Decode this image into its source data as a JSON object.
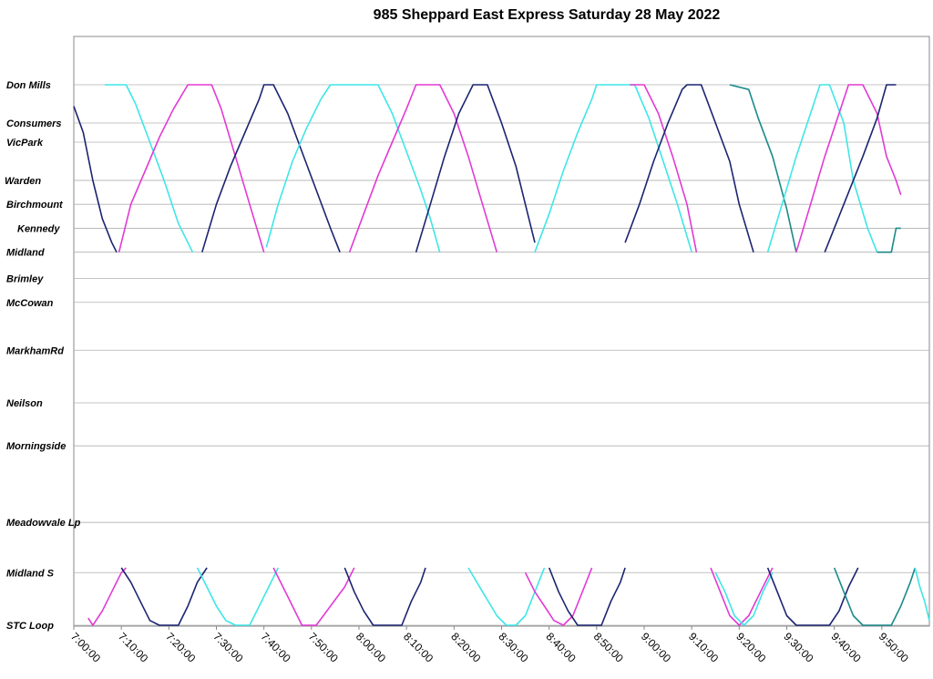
{
  "chart_data": {
    "type": "line",
    "title": "985 Sheppard East Express Saturday 28 May 2022",
    "xlabel": "",
    "ylabel": "",
    "grid": true,
    "x_ticks": [
      "7:00:00",
      "7:10:00",
      "7:20:00",
      "7:30:00",
      "7:40:00",
      "7:50:00",
      "8:00:00",
      "8:10:00",
      "8:20:00",
      "8:30:00",
      "8:40:00",
      "8:50:00",
      "9:00:00",
      "9:10:00",
      "9:20:00",
      "9:30:00",
      "9:40:00",
      "9:50:00"
    ],
    "xlim_minutes_after_7am": [
      0,
      180
    ],
    "stops": [
      {
        "name": "Don Mills",
        "pos": 0
      },
      {
        "name": "Consumers",
        "pos": 8
      },
      {
        "name": "VicPark",
        "pos": 12
      },
      {
        "name": "Warden",
        "pos": 20
      },
      {
        "name": "Birchmount",
        "pos": 25
      },
      {
        "name": "Kennedy",
        "pos": 30
      },
      {
        "name": "Midland",
        "pos": 35
      },
      {
        "name": "Brimley",
        "pos": 40.5
      },
      {
        "name": "McCowan",
        "pos": 45.5
      },
      {
        "name": "MarkhamRd",
        "pos": 55.5
      },
      {
        "name": "Neilson",
        "pos": 66.5
      },
      {
        "name": "Morningside",
        "pos": 75.5
      },
      {
        "name": "Meadowvale Lp",
        "pos": 91.5
      },
      {
        "name": "Midland S",
        "pos": 102
      },
      {
        "name": "STC Loop",
        "pos": 113
      }
    ],
    "colors": {
      "dark": "#1b2470",
      "magenta": "#e23ad4",
      "cyan": "#3fe6e6",
      "teal": "#1a8a8a"
    },
    "series": [
      {
        "color": "dark",
        "points": [
          [
            0,
            4.5
          ],
          [
            2,
            10
          ],
          [
            4,
            20
          ],
          [
            6,
            28
          ],
          [
            8,
            33
          ],
          [
            9,
            35
          ]
        ]
      },
      {
        "color": "cyan",
        "points": [
          [
            6.5,
            0
          ],
          [
            11,
            0
          ],
          [
            13,
            4
          ],
          [
            16,
            12
          ],
          [
            19,
            20
          ],
          [
            22,
            29
          ],
          [
            25,
            35
          ]
        ]
      },
      {
        "color": "magenta",
        "points": [
          [
            9.5,
            35
          ],
          [
            12,
            25
          ],
          [
            15,
            18
          ],
          [
            18,
            11
          ],
          [
            21,
            5
          ],
          [
            24,
            0
          ],
          [
            29,
            0
          ],
          [
            31,
            5
          ],
          [
            34,
            15
          ],
          [
            37,
            25
          ],
          [
            40,
            35
          ]
        ]
      },
      {
        "color": "dark",
        "points": [
          [
            27,
            35
          ],
          [
            30,
            25
          ],
          [
            33,
            17
          ],
          [
            36,
            10
          ],
          [
            39,
            3
          ],
          [
            40,
            0
          ],
          [
            42,
            0
          ],
          [
            45,
            6
          ],
          [
            48,
            14
          ],
          [
            51,
            22
          ],
          [
            54,
            30
          ],
          [
            56,
            35
          ]
        ]
      },
      {
        "color": "cyan",
        "points": [
          [
            40.5,
            34
          ],
          [
            43,
            25
          ],
          [
            46,
            16
          ],
          [
            49,
            9
          ],
          [
            52,
            3
          ],
          [
            54,
            0
          ],
          [
            64,
            0
          ],
          [
            67,
            6
          ],
          [
            70,
            14
          ],
          [
            73,
            22
          ],
          [
            75,
            28
          ],
          [
            77,
            35
          ]
        ]
      },
      {
        "color": "magenta",
        "points": [
          [
            58,
            35
          ],
          [
            61,
            27
          ],
          [
            64,
            19
          ],
          [
            67,
            12
          ],
          [
            70,
            5
          ],
          [
            72,
            0
          ],
          [
            77,
            0
          ],
          [
            80,
            6
          ],
          [
            83,
            15
          ],
          [
            86,
            25
          ],
          [
            89,
            35
          ]
        ]
      },
      {
        "color": "dark",
        "points": [
          [
            72,
            35
          ],
          [
            75,
            25
          ],
          [
            78,
            15
          ],
          [
            81,
            6
          ],
          [
            84,
            0
          ],
          [
            87,
            0
          ],
          [
            90,
            8
          ],
          [
            93,
            17
          ],
          [
            95,
            25
          ],
          [
            97,
            33
          ]
        ]
      },
      {
        "color": "cyan",
        "points": [
          [
            97,
            35
          ],
          [
            100,
            27
          ],
          [
            103,
            18
          ],
          [
            106,
            10
          ],
          [
            109,
            3
          ],
          [
            110,
            0
          ],
          [
            118,
            0
          ],
          [
            121,
            7
          ],
          [
            124,
            16
          ],
          [
            127,
            25
          ],
          [
            130,
            35
          ]
        ]
      },
      {
        "color": "magenta",
        "points": [
          [
            117,
            0
          ],
          [
            120,
            0
          ],
          [
            123,
            6
          ],
          [
            126,
            15
          ],
          [
            129,
            25
          ],
          [
            131,
            35
          ]
        ]
      },
      {
        "color": "dark",
        "points": [
          [
            116,
            33
          ],
          [
            119,
            25
          ],
          [
            122,
            16
          ],
          [
            125,
            8
          ],
          [
            128,
            1
          ],
          [
            129,
            0
          ],
          [
            132,
            0
          ],
          [
            135,
            8
          ],
          [
            138,
            16
          ],
          [
            140,
            25
          ],
          [
            143,
            35
          ]
        ]
      },
      {
        "color": "teal",
        "points": [
          [
            138,
            0
          ],
          [
            142,
            1
          ],
          [
            144,
            7
          ],
          [
            147,
            15
          ],
          [
            150,
            26
          ],
          [
            152,
            35
          ]
        ]
      },
      {
        "color": "cyan",
        "points": [
          [
            146,
            35
          ],
          [
            149,
            25
          ],
          [
            152,
            15
          ],
          [
            155,
            6
          ],
          [
            157,
            0
          ],
          [
            159,
            0
          ],
          [
            162,
            8
          ],
          [
            164,
            20
          ],
          [
            167,
            30
          ],
          [
            169,
            35
          ]
        ]
      },
      {
        "color": "magenta",
        "points": [
          [
            152,
            35
          ],
          [
            155,
            25
          ],
          [
            158,
            15
          ],
          [
            161,
            6
          ],
          [
            163,
            0
          ],
          [
            166,
            0
          ],
          [
            169,
            6
          ],
          [
            171,
            15
          ],
          [
            173,
            20
          ],
          [
            174,
            23
          ]
        ]
      },
      {
        "color": "dark",
        "points": [
          [
            158,
            35
          ],
          [
            162,
            25
          ],
          [
            166,
            15
          ],
          [
            169,
            7
          ],
          [
            171,
            0
          ],
          [
            173,
            0
          ]
        ]
      },
      {
        "color": "teal",
        "points": [
          [
            169,
            35
          ],
          [
            172,
            35
          ],
          [
            173,
            30
          ],
          [
            174,
            30
          ]
        ]
      },
      {
        "color": "magenta",
        "points": [
          [
            3,
            111.5
          ],
          [
            4,
            113
          ],
          [
            6,
            110
          ],
          [
            8,
            106
          ],
          [
            10,
            102
          ],
          [
            11,
            101
          ]
        ]
      },
      {
        "color": "dark",
        "points": [
          [
            10,
            101
          ],
          [
            12,
            104
          ],
          [
            14,
            108
          ],
          [
            16,
            112
          ],
          [
            18,
            113
          ],
          [
            22,
            113
          ],
          [
            24,
            109
          ],
          [
            26,
            104
          ],
          [
            28,
            101
          ]
        ]
      },
      {
        "color": "cyan",
        "points": [
          [
            26,
            101
          ],
          [
            28,
            105
          ],
          [
            30,
            109
          ],
          [
            32,
            112
          ],
          [
            34,
            113
          ],
          [
            37,
            113
          ],
          [
            39,
            109
          ],
          [
            41,
            105
          ],
          [
            43,
            101
          ]
        ]
      },
      {
        "color": "magenta",
        "points": [
          [
            42,
            101
          ],
          [
            45,
            107
          ],
          [
            47,
            111
          ],
          [
            48,
            113
          ],
          [
            51,
            113
          ],
          [
            54,
            109
          ],
          [
            57,
            105
          ],
          [
            59,
            101
          ]
        ]
      },
      {
        "color": "dark",
        "points": [
          [
            57,
            101
          ],
          [
            59,
            106
          ],
          [
            61,
            110
          ],
          [
            63,
            113
          ],
          [
            69,
            113
          ],
          [
            71,
            108
          ],
          [
            73,
            104
          ],
          [
            74,
            101
          ]
        ]
      },
      {
        "color": "cyan",
        "points": [
          [
            83,
            101
          ],
          [
            86,
            106
          ],
          [
            89,
            111
          ],
          [
            91,
            113
          ],
          [
            93,
            113
          ],
          [
            95,
            111
          ],
          [
            97,
            106
          ],
          [
            99,
            101
          ]
        ]
      },
      {
        "color": "magenta",
        "points": [
          [
            95,
            102
          ],
          [
            97,
            106
          ],
          [
            99,
            109
          ],
          [
            101,
            112
          ],
          [
            103,
            113
          ],
          [
            105,
            111
          ],
          [
            107,
            106
          ],
          [
            109,
            101
          ]
        ]
      },
      {
        "color": "dark",
        "points": [
          [
            100,
            101
          ],
          [
            102,
            106
          ],
          [
            104,
            110
          ],
          [
            106,
            113
          ],
          [
            111,
            113
          ],
          [
            113,
            108
          ],
          [
            115,
            104
          ],
          [
            116,
            101
          ]
        ]
      },
      {
        "color": "magenta",
        "points": [
          [
            134,
            101
          ],
          [
            136,
            106
          ],
          [
            138,
            111
          ],
          [
            140,
            113
          ],
          [
            142,
            111
          ],
          [
            144,
            107
          ],
          [
            146,
            103
          ],
          [
            147,
            101
          ]
        ]
      },
      {
        "color": "cyan",
        "points": [
          [
            135,
            102
          ],
          [
            137,
            106
          ],
          [
            139,
            111
          ],
          [
            141,
            113
          ],
          [
            143,
            111
          ],
          [
            145,
            106
          ],
          [
            147,
            102
          ]
        ]
      },
      {
        "color": "dark",
        "points": [
          [
            146,
            101
          ],
          [
            148,
            106
          ],
          [
            150,
            111
          ],
          [
            152,
            113
          ],
          [
            159,
            113
          ],
          [
            161,
            110
          ],
          [
            163,
            105
          ],
          [
            165,
            101
          ]
        ]
      },
      {
        "color": "teal",
        "points": [
          [
            160,
            101
          ],
          [
            162,
            106
          ],
          [
            164,
            111
          ],
          [
            166,
            113
          ],
          [
            172,
            113
          ],
          [
            174,
            109
          ],
          [
            176,
            104
          ],
          [
            177,
            101
          ]
        ]
      },
      {
        "color": "cyan",
        "points": [
          [
            177,
            101
          ],
          [
            178,
            105
          ],
          [
            179,
            108
          ],
          [
            180,
            112
          ]
        ]
      }
    ]
  }
}
